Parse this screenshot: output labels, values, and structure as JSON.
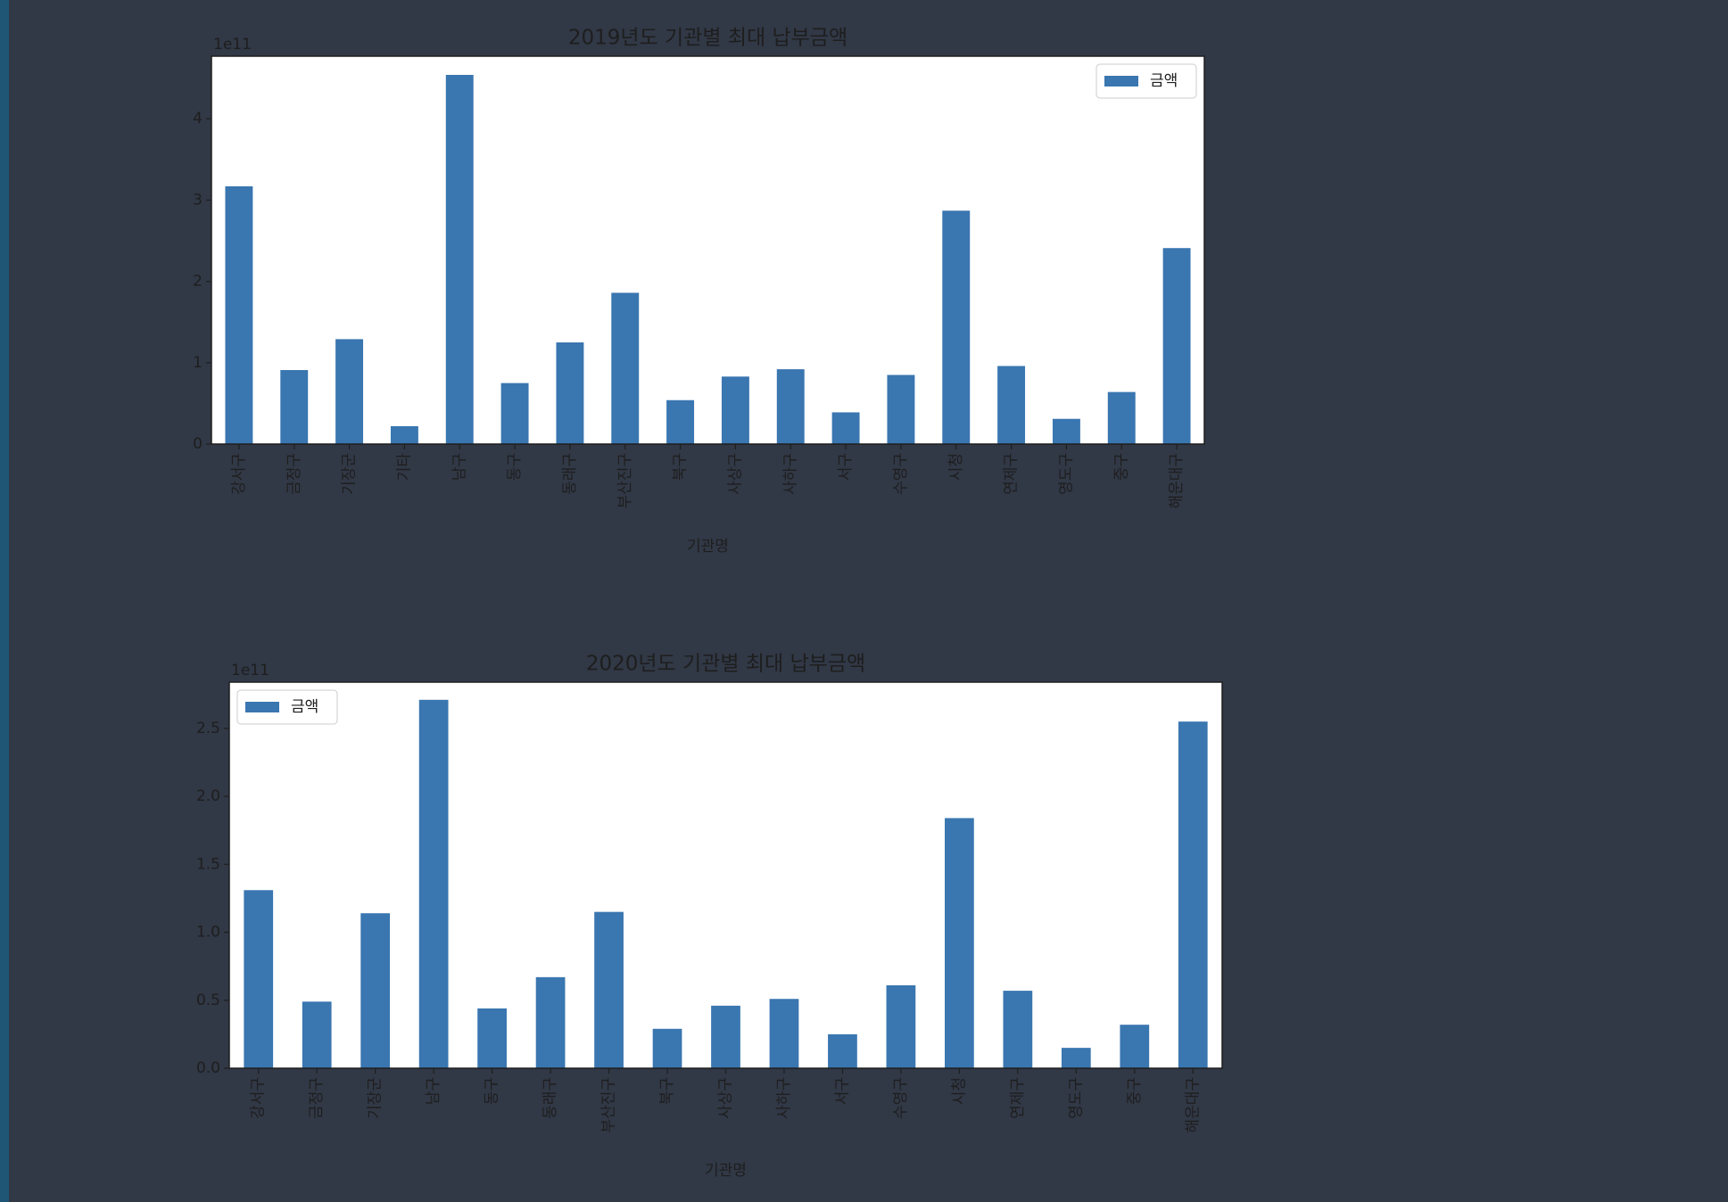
{
  "chart_data": [
    {
      "type": "bar",
      "title": "2019년도 기관별 최대 납부금액",
      "xlabel": "기관명",
      "y_offset_label": "1e11",
      "categories": [
        "강서구",
        "금정구",
        "기장군",
        "기타",
        "남구",
        "동구",
        "동래구",
        "부산진구",
        "북구",
        "사상구",
        "사하구",
        "서구",
        "수영구",
        "시청",
        "연제구",
        "영도구",
        "중구",
        "해운대구"
      ],
      "series": [
        {
          "name": "금액",
          "color": "#3a76b0",
          "values": [
            3.17,
            0.91,
            1.29,
            0.22,
            4.54,
            0.75,
            1.25,
            1.86,
            0.54,
            0.83,
            0.92,
            0.39,
            0.85,
            2.87,
            0.96,
            0.31,
            0.64,
            2.41
          ]
        }
      ],
      "ylim": [
        0,
        4.77
      ],
      "yticks": [
        0,
        1,
        2,
        3,
        4
      ],
      "legend": "upper right"
    },
    {
      "type": "bar",
      "title": "2020년도 기관별 최대 납부금액",
      "xlabel": "기관명",
      "y_offset_label": "1e11",
      "categories": [
        "강서구",
        "금정구",
        "기장군",
        "남구",
        "동구",
        "동래구",
        "부산진구",
        "북구",
        "사상구",
        "사하구",
        "서구",
        "수영구",
        "시청",
        "연제구",
        "영도구",
        "중구",
        "해운대구"
      ],
      "series": [
        {
          "name": "금액",
          "color": "#3a76b0",
          "values": [
            1.31,
            0.49,
            1.14,
            2.71,
            0.44,
            0.67,
            1.15,
            0.29,
            0.46,
            0.51,
            0.25,
            0.61,
            1.84,
            0.57,
            0.15,
            0.32,
            2.55
          ]
        }
      ],
      "ylim": [
        0,
        2.84
      ],
      "yticks": [
        {
          "value": 0,
          "label": "0.0"
        },
        0.5,
        {
          "value": 1,
          "label": "1.0"
        },
        1.5,
        {
          "value": 2,
          "label": "2.0"
        },
        2.5
      ],
      "legend": "upper left"
    }
  ]
}
